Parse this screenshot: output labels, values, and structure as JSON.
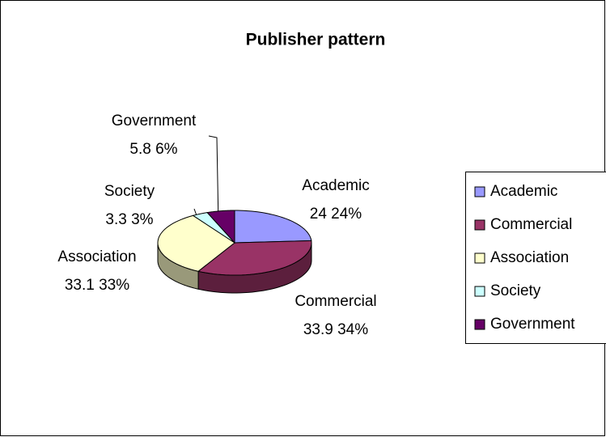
{
  "chart_data": {
    "type": "pie",
    "title": "Publisher pattern",
    "categories": [
      "Academic",
      "Commercial",
      "Association",
      "Society",
      "Government"
    ],
    "values": [
      24,
      33.9,
      33.1,
      3.3,
      5.8
    ],
    "value_labels": [
      "24 24%",
      "33.9 34%",
      "33.1 33%",
      "3.3 3%",
      "5.8 6%"
    ],
    "colors": [
      "#9999ff",
      "#993366",
      "#ffffcc",
      "#ccffff",
      "#660066"
    ],
    "legend": "right"
  }
}
